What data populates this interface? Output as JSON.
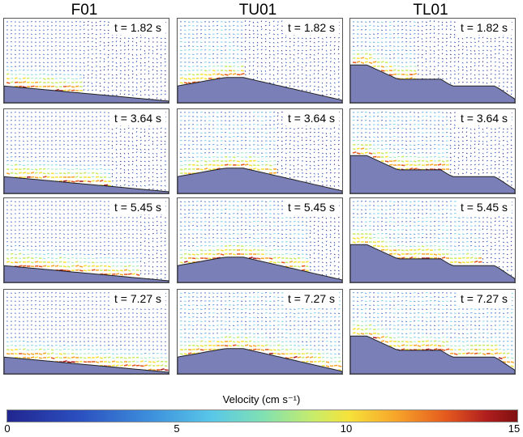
{
  "columns": [
    {
      "title": "F01",
      "panels": [
        "t = 1.82 s",
        "t = 3.64 s",
        "t = 5.45 s",
        "t = 7.27 s"
      ]
    },
    {
      "title": "TU01",
      "panels": [
        "t = 1.82 s",
        "t = 3.64 s",
        "t = 5.45 s",
        "t = 7.27 s"
      ]
    },
    {
      "title": "TL01",
      "panels": [
        "t = 1.82 s",
        "t = 3.64 s",
        "t = 5.45 s",
        "t = 7.27 s"
      ]
    }
  ],
  "colorbar": {
    "title": "Velocity (cm s⁻¹)",
    "ticks": [
      "0",
      "5",
      "10",
      "15"
    ]
  },
  "colors": {
    "ground": "#7a7fb8",
    "slow": "#2a3e9c",
    "fast": "#c21f1f"
  }
}
